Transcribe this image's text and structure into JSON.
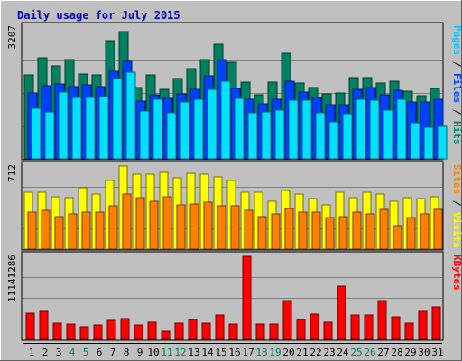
{
  "chart_data": {
    "type": "bar",
    "title": "Daily usage for July 2015",
    "categories": [
      "1",
      "2",
      "3",
      "4",
      "5",
      "6",
      "7",
      "8",
      "9",
      "10",
      "11",
      "12",
      "13",
      "14",
      "15",
      "16",
      "17",
      "18",
      "19",
      "20",
      "21",
      "22",
      "23",
      "24",
      "25",
      "26",
      "27",
      "28",
      "29",
      "30",
      "31"
    ],
    "weekend_days": [
      "4",
      "5",
      "11",
      "12",
      "18",
      "19",
      "25",
      "26"
    ],
    "panels": [
      {
        "id": "pages-files-hits",
        "max_label": "3207",
        "ylim": [
          0,
          3207
        ],
        "axis_label_parts": [
          {
            "text": "Pages",
            "color": "#00c0ff"
          },
          {
            "text": " / ",
            "color": "#000000"
          },
          {
            "text": "Files",
            "color": "#0040ff"
          },
          {
            "text": " / ",
            "color": "#000000"
          },
          {
            "text": "Hits",
            "color": "#008060"
          }
        ],
        "series": [
          {
            "name": "Hits",
            "color": "#008060",
            "values": [
              2050,
              2450,
              2270,
              2410,
              2060,
              2040,
              2870,
              3100,
              1730,
              2040,
              1700,
              1950,
              2190,
              2420,
              2780,
              2340,
              1860,
              1550,
              1860,
              2580,
              1850,
              1730,
              1580,
              1600,
              1970,
              1970,
              1850,
              1890,
              1640,
              1530,
              1720
            ]
          },
          {
            "name": "Files",
            "color": "#0040ff",
            "values": [
              1610,
              1780,
              1820,
              1760,
              1800,
              1750,
              2120,
              2370,
              1400,
              1550,
              1470,
              1590,
              1700,
              2030,
              2420,
              1720,
              1450,
              1340,
              1450,
              1880,
              1630,
              1490,
              1320,
              1320,
              1700,
              1740,
              1570,
              1680,
              1390,
              1380,
              1440
            ]
          },
          {
            "name": "Pages",
            "color": "#00e0ff",
            "values": [
              1220,
              1150,
              1620,
              1490,
              1500,
              1510,
              1950,
              2110,
              1160,
              1460,
              1120,
              1380,
              1460,
              1700,
              1880,
              1470,
              1120,
              1150,
              1190,
              1420,
              1420,
              1110,
              900,
              1100,
              1440,
              1430,
              1180,
              1440,
              880,
              760,
              790
            ]
          }
        ]
      },
      {
        "id": "visits-sites",
        "max_label": "712",
        "ylim": [
          0,
          712
        ],
        "axis_label_parts": [
          {
            "text": "Sites",
            "color": "#ff8000"
          },
          {
            "text": " / ",
            "color": "#000000"
          },
          {
            "text": "Visits",
            "color": "#ffff00"
          }
        ],
        "series": [
          {
            "name": "Visits",
            "color": "#ffff00",
            "values": [
              490,
              490,
              450,
              440,
              530,
              470,
              590,
              712,
              640,
              640,
              660,
              610,
              650,
              640,
              620,
              590,
              490,
              490,
              410,
              500,
              470,
              430,
              380,
              490,
              440,
              490,
              470,
              410,
              440,
              430,
              450
            ]
          },
          {
            "name": "Sites",
            "color": "#ff8000",
            "values": [
              320,
              330,
              280,
              300,
              320,
              320,
              370,
              470,
              440,
              410,
              450,
              380,
              390,
              400,
              370,
              370,
              330,
              280,
              300,
              350,
              320,
              320,
              270,
              280,
              320,
              300,
              340,
              200,
              270,
              300,
              340
            ]
          }
        ]
      },
      {
        "id": "kbytes",
        "max_label": "11141286",
        "ylim": [
          0,
          11141286
        ],
        "axis_label_parts": [
          {
            "text": "KBytes",
            "color": "#ff0000"
          }
        ],
        "series": [
          {
            "name": "KBytes",
            "color": "#ff0000",
            "values": [
              3550000,
              3800000,
              2200000,
              2050000,
              1750000,
              1950000,
              2500000,
              2750000,
              1900000,
              2250000,
              1100000,
              2200000,
              2700000,
              2150000,
              3250000,
              2050000,
              11141286,
              2000000,
              2100000,
              5200000,
              2700000,
              3400000,
              2250000,
              7200000,
              3300000,
              3300000,
              5200000,
              3000000,
              2150000,
              3800000,
              4300000
            ]
          }
        ]
      }
    ]
  }
}
